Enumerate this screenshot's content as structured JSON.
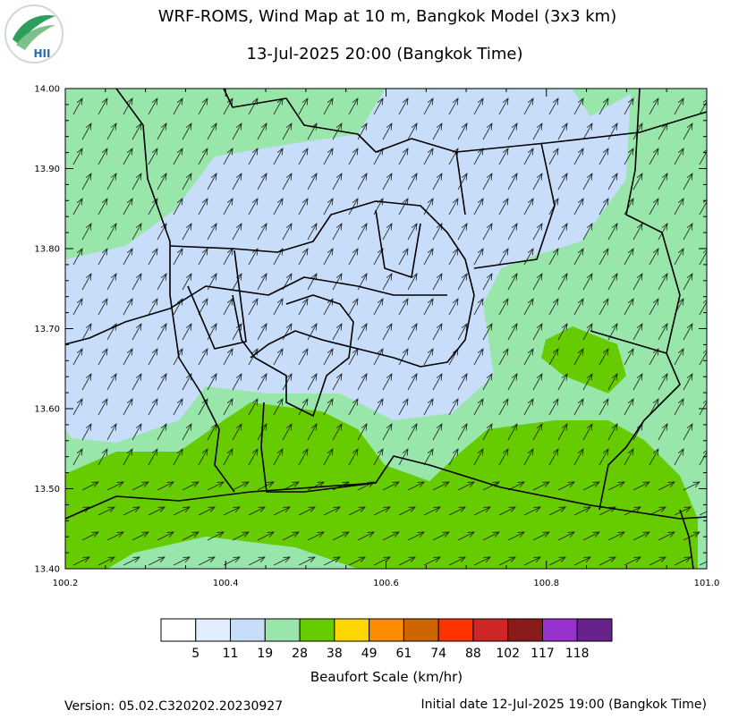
{
  "title": "WRF-ROMS, Wind Map at 10 m, Bangkok Model (3x3 km)",
  "subtitle": "13-Jul-2025 20:00 (Bangkok Time)",
  "logo_text": "HII",
  "map": {
    "xlim": [
      100.2,
      101.0
    ],
    "ylim": [
      13.4,
      14.0
    ],
    "xticks": [
      100.2,
      100.4,
      100.6,
      100.8,
      {
        "value": 101.0,
        "label": "101.0"
      }
    ],
    "yticks": [
      {
        "value": 13.4,
        "label": "13.40"
      },
      {
        "value": 13.5,
        "label": "13.50"
      },
      {
        "value": 13.6,
        "label": "13.60"
      },
      {
        "value": 13.7,
        "label": "13.70"
      },
      {
        "value": 13.8,
        "label": "13.80"
      },
      {
        "value": 13.9,
        "label": "13.90"
      },
      {
        "value": 14.0,
        "label": "14.00"
      }
    ]
  },
  "colorbar": {
    "colors": [
      "#ffffff",
      "#e1edfd",
      "#c7ddfa",
      "#99e6aa",
      "#66cc00",
      "#ffd700",
      "#ff8c00",
      "#cd6600",
      "#ff3300",
      "#cd2626",
      "#8b1a1a",
      "#9932cc",
      "#68228b"
    ],
    "values": [
      5,
      11,
      19,
      28,
      38,
      49,
      61,
      74,
      88,
      102,
      117,
      118
    ],
    "title": "Beaufort Scale (km/hr)"
  },
  "version": "Version: 05.02.C320202.20230927",
  "initial_date": "Initial date 12-Jul-2025 19:00 (Bangkok Time)"
}
